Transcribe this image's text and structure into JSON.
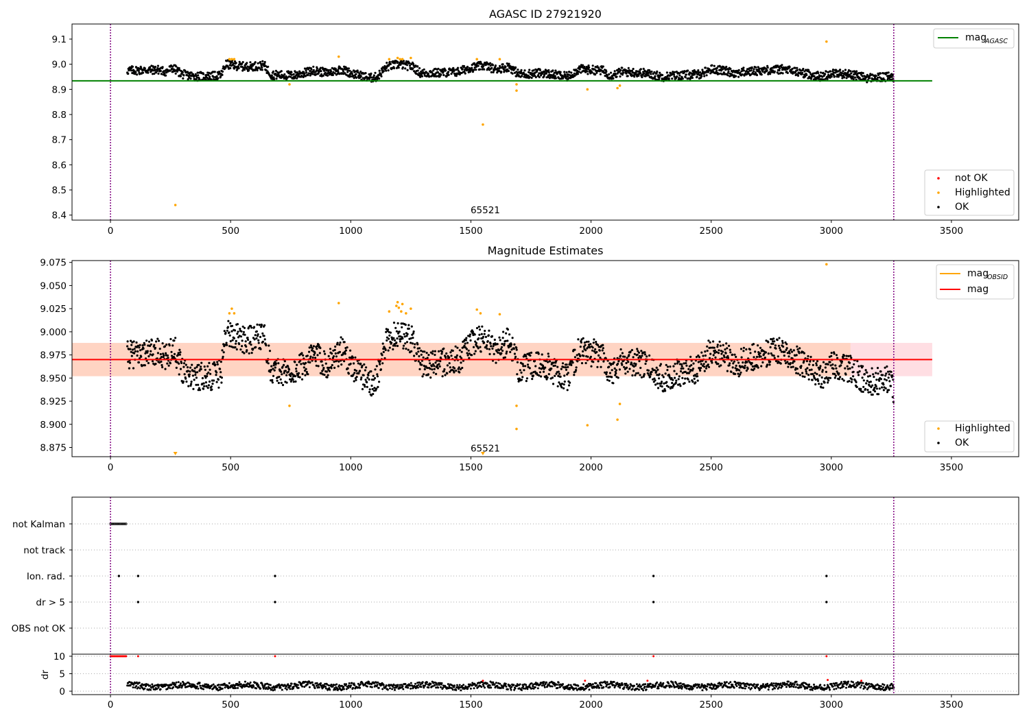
{
  "chart_data": [
    {
      "type": "scatter",
      "title": "AGASC ID 27921920",
      "xlim": [
        -160,
        3780
      ],
      "ylim": [
        8.38,
        9.16
      ],
      "xticks": [
        0,
        500,
        1000,
        1500,
        2000,
        2500,
        3000,
        3500
      ],
      "yticks": [
        8.4,
        8.5,
        8.6,
        8.7,
        8.8,
        8.9,
        9.0,
        9.1
      ],
      "vlines": [
        0,
        3260
      ],
      "annotation": {
        "text": "65521",
        "x": 1560,
        "y": 8.41
      },
      "hlines": [
        {
          "name": "mag",
          "sub": "AGASC",
          "y": 8.934,
          "x": [
            -160,
            3420
          ],
          "color": "#008000"
        }
      ],
      "legend_lines": [
        {
          "name": "mag",
          "sub": "AGASC",
          "color": "#008000"
        }
      ],
      "legend_points": [
        {
          "name": "not OK",
          "color": "#ff0000"
        },
        {
          "name": "Highlighted",
          "color": "#ffa500"
        },
        {
          "name": "OK",
          "color": "#000000"
        }
      ],
      "ok_series": {
        "x_range": [
          70,
          3260
        ],
        "description_free": true
      },
      "highlighted": [
        [
          270,
          8.44
        ],
        [
          495,
          9.02
        ],
        [
          505,
          9.02
        ],
        [
          515,
          9.02
        ],
        [
          745,
          8.92
        ],
        [
          950,
          9.03
        ],
        [
          1160,
          9.02
        ],
        [
          1195,
          9.025
        ],
        [
          1205,
          9.02
        ],
        [
          1215,
          9.02
        ],
        [
          1250,
          9.025
        ],
        [
          1525,
          9.02
        ],
        [
          1550,
          8.76
        ],
        [
          1620,
          9.02
        ],
        [
          1690,
          8.92
        ],
        [
          1690,
          8.895
        ],
        [
          1985,
          8.9
        ],
        [
          2110,
          8.905
        ],
        [
          2120,
          8.915
        ],
        [
          2980,
          9.09
        ]
      ]
    },
    {
      "type": "scatter",
      "title": "Magnitude Estimates",
      "xlim": [
        -160,
        3780
      ],
      "ylim": [
        8.865,
        9.077
      ],
      "xticks": [
        0,
        500,
        1000,
        1500,
        2000,
        2500,
        3000,
        3500
      ],
      "yticks": [
        8.875,
        8.9,
        8.925,
        8.95,
        8.975,
        9.0,
        9.025,
        9.05,
        9.075
      ],
      "vlines": [
        0,
        3260
      ],
      "annotation": {
        "text": "65521",
        "x": 1560,
        "y": 8.87
      },
      "hlines": [
        {
          "name": "mag",
          "y": 8.97,
          "x": [
            -160,
            3420
          ],
          "color": "#ff0000"
        }
      ],
      "bands": [
        {
          "y": [
            8.952,
            8.988
          ],
          "x": [
            -160,
            3080
          ],
          "color": "#ffa07a"
        },
        {
          "y": [
            8.952,
            8.988
          ],
          "x": [
            3080,
            3420
          ],
          "color": "#ffb6c1"
        }
      ],
      "legend_lines": [
        {
          "name": "mag",
          "sub": "OBSID",
          "color": "#ffa500"
        },
        {
          "name": "mag",
          "color": "#ff0000"
        }
      ],
      "legend_points": [
        {
          "name": "Highlighted",
          "color": "#ffa500"
        },
        {
          "name": "OK",
          "color": "#000000"
        }
      ],
      "highlighted": [
        [
          270,
          8.868
        ],
        [
          495,
          9.02
        ],
        [
          505,
          9.025
        ],
        [
          515,
          9.02
        ],
        [
          745,
          8.92
        ],
        [
          950,
          9.031
        ],
        [
          1160,
          9.022
        ],
        [
          1190,
          9.028
        ],
        [
          1195,
          9.032
        ],
        [
          1200,
          9.026
        ],
        [
          1210,
          9.022
        ],
        [
          1215,
          9.03
        ],
        [
          1230,
          9.02
        ],
        [
          1250,
          9.025
        ],
        [
          1525,
          9.024
        ],
        [
          1540,
          9.02
        ],
        [
          1550,
          8.868
        ],
        [
          1620,
          9.019
        ],
        [
          1690,
          8.92
        ],
        [
          1690,
          8.895
        ],
        [
          1985,
          8.899
        ],
        [
          2110,
          8.905
        ],
        [
          2120,
          8.922
        ],
        [
          2980,
          9.073
        ]
      ]
    },
    {
      "type": "scatter",
      "xlim": [
        -160,
        3780
      ],
      "xticks": [
        0,
        500,
        1000,
        1500,
        2000,
        2500,
        3000,
        3500
      ],
      "vlines": [
        0,
        3260
      ],
      "flag_rows": [
        "not Kalman",
        "not track",
        "Ion. rad.",
        "dr > 5",
        "OBS not OK"
      ],
      "flag_points": {
        "not Kalman": {
          "x_range": [
            0,
            65
          ],
          "step": 5
        },
        "not track": [],
        "Ion. rad.": [
          35,
          115,
          685,
          2260,
          2980
        ],
        "dr > 5": [
          115,
          685,
          2260,
          2980
        ],
        "OBS not OK": []
      },
      "dr_ylim": [
        0,
        10
      ],
      "dr_yticks": [
        0,
        5,
        10
      ],
      "dr_ylabel": "dr",
      "dr_red_points": [
        [
          0,
          10
        ],
        [
          5,
          10
        ],
        [
          10,
          10
        ],
        [
          15,
          10
        ],
        [
          20,
          10
        ],
        [
          25,
          10
        ],
        [
          30,
          10
        ],
        [
          35,
          10
        ],
        [
          40,
          10
        ],
        [
          45,
          10
        ],
        [
          50,
          10
        ],
        [
          55,
          10
        ],
        [
          60,
          10
        ],
        [
          65,
          10
        ],
        [
          115,
          10
        ],
        [
          685,
          10
        ],
        [
          2260,
          10
        ],
        [
          2980,
          10
        ],
        [
          1550,
          3.0
        ],
        [
          1975,
          3.0
        ],
        [
          2235,
          3.0
        ],
        [
          2985,
          3.2
        ],
        [
          3125,
          3.0
        ]
      ]
    }
  ]
}
